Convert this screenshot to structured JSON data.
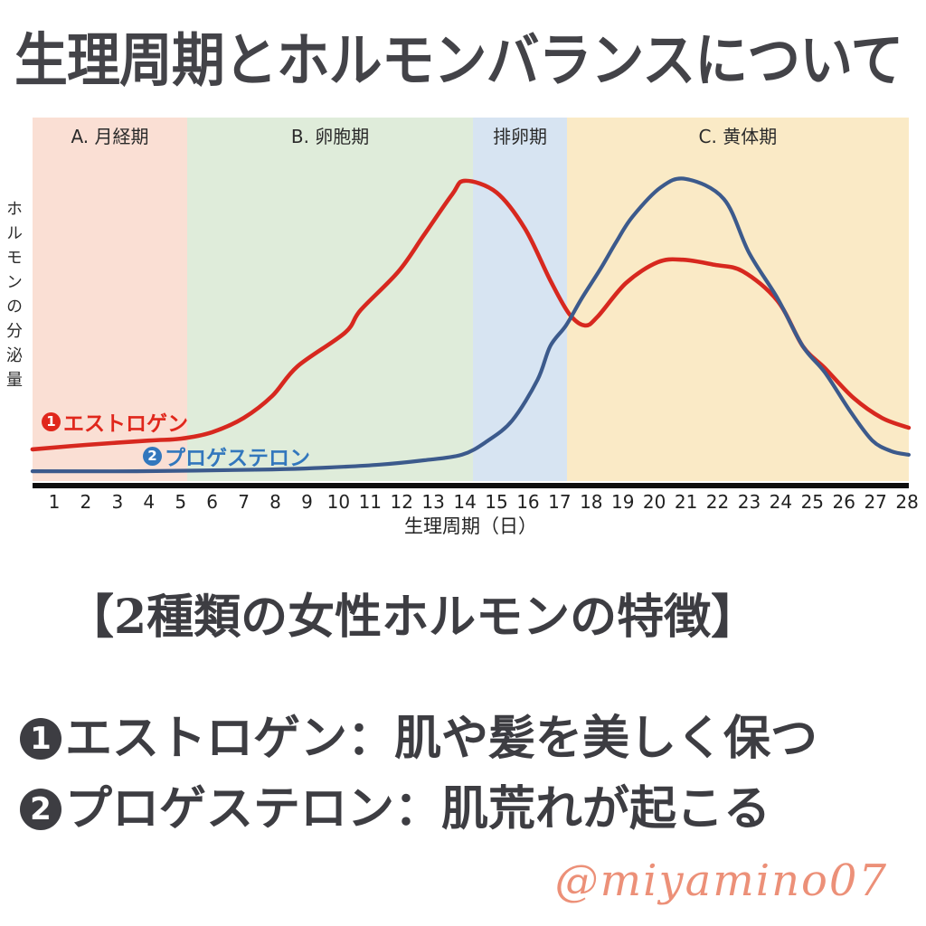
{
  "page": {
    "title": "生理周期とホルモンバランスについて",
    "subtitle": "【2種類の女性ホルモンの特徴】",
    "features": [
      {
        "marker": "1",
        "text": "エストロゲン：肌や髪を美しく保つ"
      },
      {
        "marker": "2",
        "text": "プロゲステロン：肌荒れが起こる"
      }
    ],
    "watermark": "@miyamino07"
  },
  "chart_data": {
    "type": "line",
    "title": "",
    "xlabel": "生理周期（日）",
    "ylabel": "ホルモンの分泌量",
    "x_ticks": [
      1,
      2,
      3,
      4,
      5,
      6,
      7,
      8,
      9,
      10,
      11,
      12,
      13,
      14,
      15,
      16,
      17,
      18,
      19,
      20,
      21,
      22,
      23,
      24,
      25,
      26,
      27,
      28
    ],
    "x_range": [
      0.31,
      28.05
    ],
    "ylim": [
      0,
      100
    ],
    "grid": false,
    "legend_position": "inside-lower-left",
    "phases": [
      {
        "label": "A. 月経期",
        "day_start": 0.31,
        "day_end": 5.21,
        "color": "#fadfd4"
      },
      {
        "label": "B. 卵胞期",
        "day_start": 5.21,
        "day_end": 14.26,
        "color": "#dfecda"
      },
      {
        "label": "排卵期",
        "day_start": 14.26,
        "day_end": 17.23,
        "color": "#d7e4f2"
      },
      {
        "label": "C. 黄体期",
        "day_start": 17.23,
        "day_end": 28.05,
        "color": "#faeac6"
      }
    ],
    "series": [
      {
        "name": "エストロゲン",
        "marker": "1",
        "color": "#d7281f",
        "label_color": "#e0271c",
        "points": [
          [
            0.31,
            8.7
          ],
          [
            2,
            9.9
          ],
          [
            4,
            11.1
          ],
          [
            5,
            11.6
          ],
          [
            6,
            13.4
          ],
          [
            7,
            17.3
          ],
          [
            7.9,
            23.3
          ],
          [
            8.7,
            31.4
          ],
          [
            10.2,
            40.6
          ],
          [
            10.7,
            46.8
          ],
          [
            11.9,
            57.4
          ],
          [
            12.7,
            67.3
          ],
          [
            13.6,
            78.5
          ],
          [
            14,
            82.2
          ],
          [
            15,
            79
          ],
          [
            15.9,
            69.1
          ],
          [
            16.7,
            55
          ],
          [
            17.3,
            45.8
          ],
          [
            17.8,
            42.6
          ],
          [
            18.2,
            45
          ],
          [
            19.1,
            54.2
          ],
          [
            20.1,
            59.9
          ],
          [
            20.9,
            60.6
          ],
          [
            21.9,
            59.2
          ],
          [
            22.8,
            57.4
          ],
          [
            23.9,
            49.3
          ],
          [
            24.7,
            36.9
          ],
          [
            25.4,
            30.9
          ],
          [
            26.3,
            22.8
          ],
          [
            27.2,
            17.3
          ],
          [
            28.05,
            14.6
          ]
        ]
      },
      {
        "name": "プロゲステロン",
        "marker": "2",
        "color": "#3c5a8c",
        "label_color": "#3277bd",
        "points": [
          [
            0.31,
            2.7
          ],
          [
            3.6,
            2.7
          ],
          [
            7.9,
            3.2
          ],
          [
            9.6,
            3.7
          ],
          [
            11.3,
            4.5
          ],
          [
            12.7,
            5.7
          ],
          [
            13.9,
            7.2
          ],
          [
            14.7,
            10.9
          ],
          [
            15.5,
            16.6
          ],
          [
            16.3,
            27.7
          ],
          [
            16.7,
            36.9
          ],
          [
            17.2,
            42.6
          ],
          [
            17.7,
            50
          ],
          [
            18.3,
            58.2
          ],
          [
            18.8,
            65.6
          ],
          [
            19.3,
            72.3
          ],
          [
            20.2,
            80.4
          ],
          [
            21,
            82.7
          ],
          [
            22.2,
            77.2
          ],
          [
            23,
            62.4
          ],
          [
            23.9,
            50
          ],
          [
            24.7,
            36.9
          ],
          [
            25.4,
            29.7
          ],
          [
            26.2,
            19.1
          ],
          [
            26.9,
            11.1
          ],
          [
            27.5,
            8.2
          ],
          [
            28.05,
            7.2
          ]
        ]
      }
    ]
  },
  "colors": {
    "title_text": "#434348",
    "body_text": "#3d3d42",
    "axis": "#0e0e0e",
    "tick_text": "#222222",
    "watermark": "#ec9078"
  }
}
